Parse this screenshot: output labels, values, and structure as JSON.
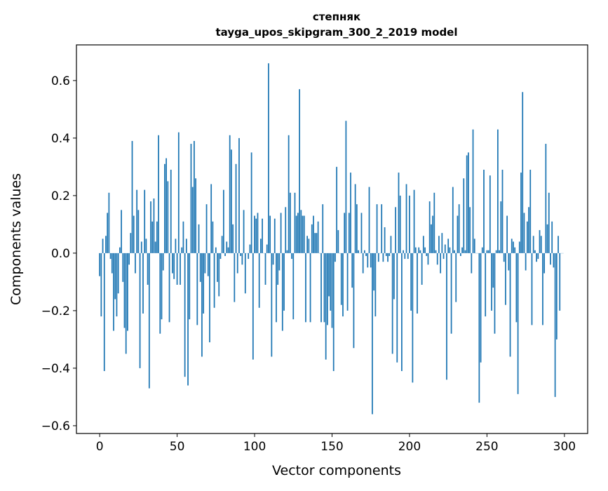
{
  "chart_data": {
    "type": "bar",
    "title_line1": "степняк",
    "title_line2": "tayga_upos_skipgram_300_2_2019 model",
    "xlabel": "Vector components",
    "ylabel": "Components values",
    "xlim": [
      -15,
      315
    ],
    "ylim": [
      -0.627,
      0.724
    ],
    "xticks": [
      0,
      50,
      100,
      150,
      200,
      250,
      300
    ],
    "xtick_labels": [
      "0",
      "50",
      "100",
      "150",
      "200",
      "250",
      "300"
    ],
    "yticks": [
      -0.6,
      -0.4,
      -0.2,
      0.0,
      0.2,
      0.4,
      0.6
    ],
    "ytick_labels": [
      "−0.6",
      "−0.4",
      "−0.2",
      "0.0",
      "0.2",
      "0.4",
      "0.6"
    ],
    "grid": false,
    "bar_color": "#1f77b4",
    "values": [
      -0.08,
      -0.22,
      0.05,
      -0.41,
      0.06,
      0.14,
      0.21,
      -0.02,
      -0.07,
      -0.27,
      -0.16,
      -0.22,
      -0.14,
      0.02,
      0.15,
      -0.1,
      -0.26,
      -0.35,
      -0.27,
      -0.04,
      0.07,
      0.39,
      0.13,
      -0.07,
      0.22,
      0.15,
      -0.4,
      0.04,
      -0.21,
      0.22,
      0.05,
      -0.11,
      -0.47,
      0.18,
      0.11,
      0.19,
      0.04,
      0.11,
      0.41,
      -0.28,
      -0.23,
      -0.06,
      0.31,
      0.33,
      0.25,
      -0.24,
      0.29,
      -0.07,
      -0.09,
      0.05,
      -0.11,
      0.42,
      -0.11,
      0.02,
      0.11,
      -0.43,
      0.05,
      -0.46,
      -0.23,
      0.38,
      0.23,
      0.39,
      0.26,
      -0.25,
      0.1,
      -0.1,
      -0.36,
      -0.21,
      -0.07,
      0.17,
      -0.08,
      -0.31,
      0.24,
      0.11,
      -0.19,
      0.02,
      -0.1,
      -0.15,
      -0.02,
      0.06,
      0.22,
      -0.01,
      0.04,
      0.02,
      0.41,
      0.36,
      0.1,
      -0.17,
      0.31,
      -0.07,
      0.4,
      -0.01,
      -0.04,
      0.15,
      -0.14,
      0.0,
      -0.02,
      0.03,
      0.35,
      -0.37,
      0.13,
      0.12,
      0.14,
      -0.19,
      0.05,
      0.12,
      0.0,
      -0.11,
      0.03,
      0.66,
      0.13,
      -0.36,
      -0.04,
      0.12,
      -0.24,
      -0.11,
      -0.06,
      0.14,
      -0.27,
      -0.2,
      0.16,
      0.01,
      0.41,
      0.21,
      -0.02,
      -0.23,
      0.21,
      0.13,
      0.14,
      0.57,
      0.15,
      0.13,
      0.13,
      -0.24,
      0.06,
      0.05,
      -0.24,
      0.1,
      0.13,
      0.07,
      0.07,
      0.11,
      0.0,
      -0.24,
      0.17,
      -0.24,
      -0.37,
      -0.25,
      -0.15,
      -0.2,
      -0.26,
      -0.41,
      -0.03,
      0.3,
      0.08,
      0.0,
      -0.18,
      -0.22,
      0.14,
      0.46,
      -0.2,
      0.14,
      0.28,
      -0.12,
      -0.33,
      0.24,
      0.17,
      0.01,
      0.0,
      0.14,
      -0.07,
      0.01,
      -0.01,
      -0.05,
      0.23,
      -0.05,
      -0.56,
      -0.13,
      -0.22,
      0.17,
      -0.03,
      0.0,
      0.17,
      -0.03,
      0.09,
      -0.01,
      -0.03,
      -0.01,
      0.06,
      -0.35,
      -0.16,
      0.16,
      -0.38,
      0.28,
      0.2,
      -0.41,
      0.01,
      -0.02,
      0.24,
      -0.02,
      0.2,
      -0.2,
      -0.45,
      0.22,
      0.02,
      -0.21,
      0.02,
      0.01,
      -0.11,
      0.06,
      0.02,
      -0.01,
      -0.04,
      0.18,
      0.1,
      0.13,
      0.21,
      0.01,
      -0.04,
      0.06,
      -0.07,
      0.07,
      -0.02,
      0.03,
      -0.44,
      0.05,
      0.02,
      -0.28,
      0.23,
      0.01,
      -0.17,
      0.13,
      0.17,
      -0.01,
      0.02,
      0.26,
      0.01,
      0.34,
      0.35,
      0.16,
      -0.07,
      0.43,
      0.05,
      0.0,
      0.0,
      -0.52,
      -0.38,
      0.02,
      0.29,
      -0.22,
      0.01,
      0.01,
      0.27,
      -0.2,
      -0.12,
      -0.28,
      0.01,
      0.43,
      0.01,
      0.18,
      0.29,
      -0.03,
      -0.18,
      0.13,
      -0.06,
      -0.36,
      0.05,
      0.04,
      0.02,
      -0.24,
      -0.49,
      0.04,
      0.28,
      0.56,
      0.14,
      -0.06,
      0.11,
      0.16,
      0.29,
      -0.25,
      0.06,
      0.01,
      -0.03,
      -0.02,
      0.08,
      0.06,
      -0.25,
      -0.07,
      0.38,
      0.1,
      0.21,
      -0.04,
      0.11,
      -0.05,
      -0.5,
      -0.3,
      0.06,
      -0.2,
      0.0,
      0.0
    ]
  }
}
